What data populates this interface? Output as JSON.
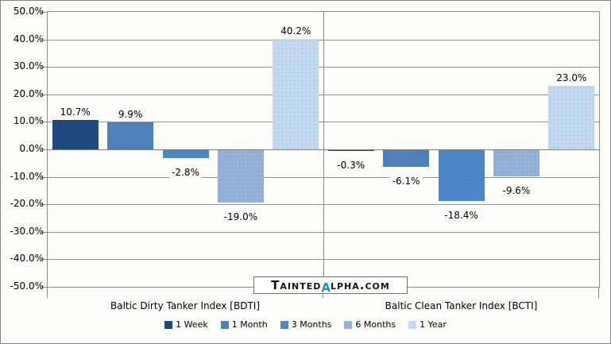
{
  "watermark": {
    "prefix": "Tainted",
    "alpha": "α",
    "suffix": "lpha.com",
    "alpha_color": "#0D94D2"
  },
  "chart_data": {
    "type": "bar",
    "title": "",
    "xlabel": "",
    "ylabel": "",
    "grid": true,
    "y_axis": {
      "min": -50,
      "max": 50,
      "step": 10,
      "ticks": [
        50,
        40,
        30,
        20,
        10,
        0,
        -10,
        -20,
        -30,
        -40,
        -50
      ],
      "tick_labels": [
        "50.0%",
        "40.0%",
        "30.0%",
        "20.0%",
        "10.0%",
        "0.0%",
        "-10.0%",
        "-20.0%",
        "-30.0%",
        "-40.0%",
        "-50.0%"
      ]
    },
    "series": [
      {
        "id": "1-week",
        "name": "1 Week",
        "color": "#1F497D"
      },
      {
        "id": "1-month",
        "name": "1 Month",
        "color": "#4F81BD"
      },
      {
        "id": "3-months",
        "name": "3 Months",
        "color": "#4E86C8"
      },
      {
        "id": "6-months",
        "name": "6 Months",
        "color": "#95B3D7"
      },
      {
        "id": "1-year",
        "name": "1 Year",
        "color": "#C5D9F1"
      }
    ],
    "groups": [
      {
        "id": "bdti",
        "label": "Baltic Dirty Tanker Index [BDTI]",
        "values": [
          10.7,
          9.9,
          -2.8,
          -19.0,
          40.2
        ],
        "value_labels": [
          "10.7%",
          "9.9%",
          "-2.8%",
          "-19.0%",
          "40.2%"
        ]
      },
      {
        "id": "bcti",
        "label": "Baltic Clean Tanker Index [BCTI]",
        "values": [
          -0.3,
          -6.1,
          -18.4,
          -9.6,
          23.0
        ],
        "value_labels": [
          "-0.3%",
          "-6.1%",
          "-18.4%",
          "-9.6%",
          "23.0%"
        ]
      }
    ],
    "legend": {
      "position": "bottom",
      "entries": [
        "1 Week",
        "1 Month",
        "3 Months",
        "6 Months",
        "1 Year"
      ]
    }
  }
}
